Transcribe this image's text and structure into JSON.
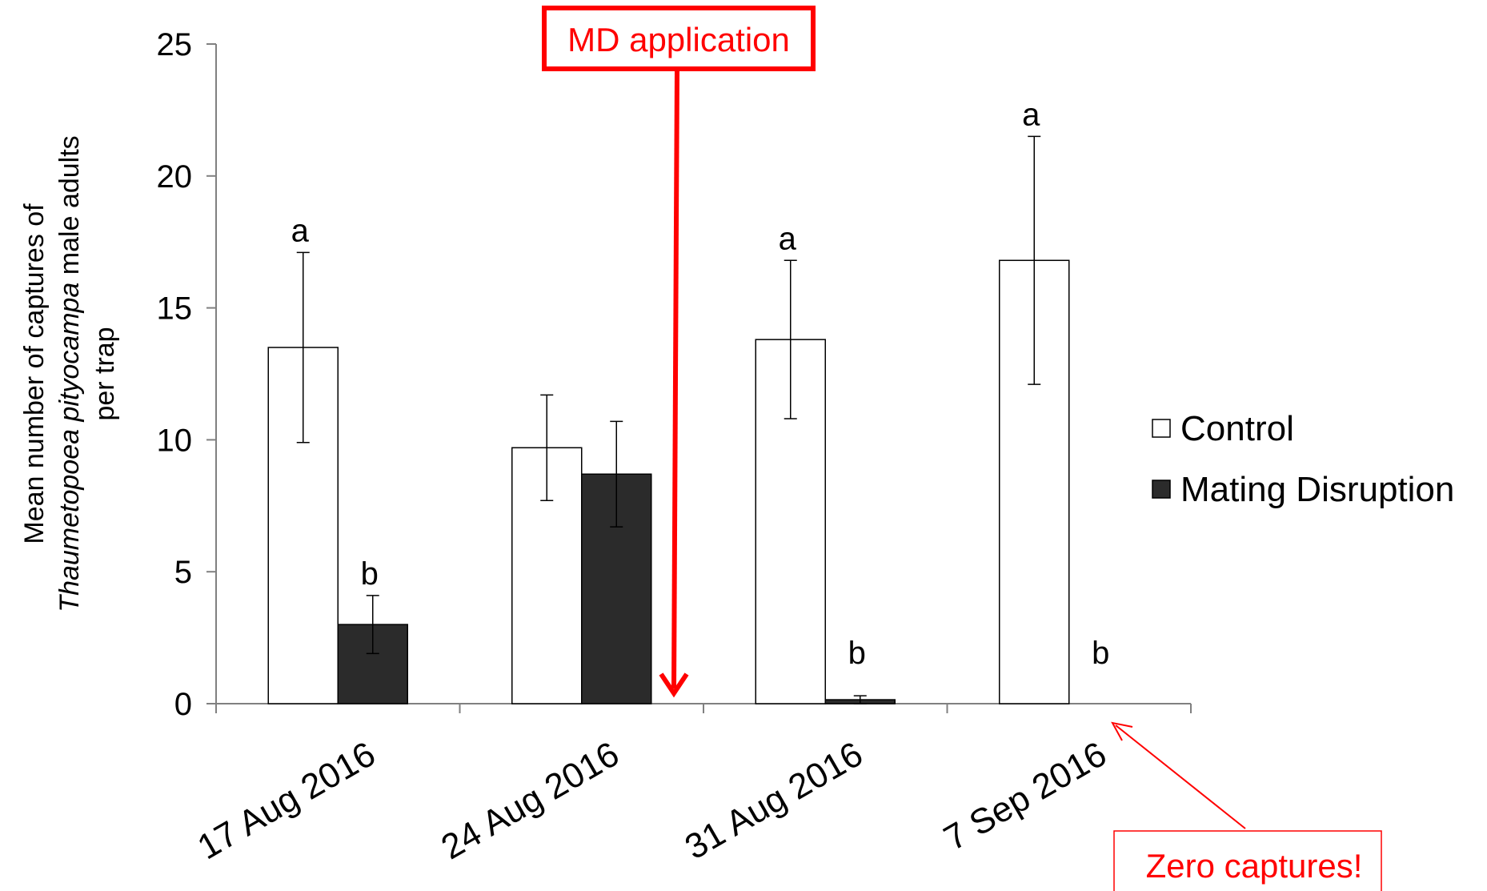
{
  "chart_data": {
    "type": "bar",
    "categories": [
      "17 Aug 2016",
      "24 Aug 2016",
      "31 Aug 2016",
      "7 Sep 2016"
    ],
    "series": [
      {
        "name": "Control",
        "color": "#ffffff",
        "values": [
          13.5,
          9.7,
          13.8,
          16.8
        ],
        "error": [
          3.6,
          2.0,
          3.0,
          4.7
        ],
        "letters": [
          "a",
          "",
          "a",
          "a"
        ]
      },
      {
        "name": "Mating Disruption",
        "color": "#2b2b2b",
        "values": [
          3.0,
          8.7,
          0.15,
          0.0
        ],
        "error": [
          1.1,
          2.0,
          0.15,
          0.0
        ],
        "letters": [
          "b",
          "",
          "b",
          "b"
        ]
      }
    ],
    "yticks": [
      "0",
      "5",
      "10",
      "15",
      "20",
      "25"
    ],
    "ylim": [
      0,
      25
    ],
    "ylabel": {
      "line1": "Mean number of captures of",
      "line2_italic": "Thaumetopoea pityocampa",
      "line2_rest": " male adults",
      "line3": "per trap"
    },
    "legend_position": "right",
    "annotations": {
      "md_application": "MD application",
      "zero_captures": "Zero captures!"
    },
    "annotation_color": "#ff0000"
  }
}
